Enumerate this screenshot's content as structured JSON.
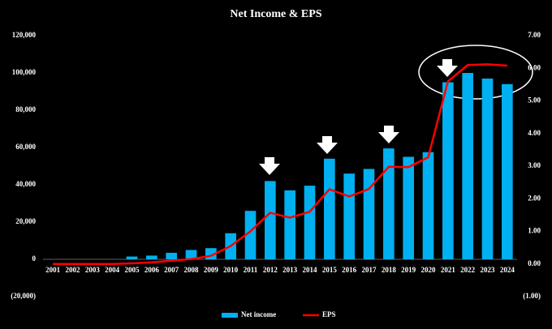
{
  "chart_data": {
    "type": "bar",
    "title": "Net Income & EPS",
    "categories": [
      "2001",
      "2002",
      "2003",
      "2004",
      "2005",
      "2006",
      "2007",
      "2008",
      "2009",
      "2010",
      "2011",
      "2012",
      "2013",
      "2014",
      "2015",
      "2016",
      "2017",
      "2018",
      "2019",
      "2020",
      "2021",
      "2022",
      "2023",
      "2024"
    ],
    "series": [
      {
        "name": "Net income",
        "type": "bar",
        "color": "#00b0f0",
        "values": [
          0,
          0,
          0,
          0,
          1500,
          2000,
          3500,
          5000,
          6000,
          14000,
          26000,
          42000,
          37000,
          39500,
          54000,
          46000,
          48500,
          59500,
          55000,
          57500,
          95000,
          100000,
          97000,
          94000
        ]
      },
      {
        "name": "EPS",
        "type": "line",
        "axis": "y2",
        "color": "#ff0000",
        "values": [
          0,
          0,
          0,
          0,
          0.02,
          0.05,
          0.1,
          0.15,
          0.25,
          0.55,
          1.0,
          1.57,
          1.42,
          1.6,
          2.29,
          2.07,
          2.3,
          2.98,
          2.97,
          3.27,
          5.6,
          6.1,
          6.12,
          6.08
        ]
      }
    ],
    "ylim": [
      -20000,
      120000
    ],
    "yticks": [
      {
        "value": -20000,
        "label": "(20,000)"
      },
      0,
      {
        "value": 20000,
        "label": "20,000"
      },
      {
        "value": 40000,
        "label": "40,000"
      },
      {
        "value": 60000,
        "label": "60,000"
      },
      {
        "value": 80000,
        "label": "80,000"
      },
      {
        "value": 100000,
        "label": "100,000"
      },
      {
        "value": 120000,
        "label": "120,000"
      }
    ],
    "y2lim": [
      -1,
      7
    ],
    "y2ticks": [
      {
        "value": -1,
        "label": "(1.00)"
      },
      {
        "value": 0,
        "label": "0.00"
      },
      {
        "value": 1,
        "label": "1.00"
      },
      {
        "value": 2,
        "label": "2.00"
      },
      {
        "value": 3,
        "label": "3.00"
      },
      {
        "value": 4,
        "label": "4.00"
      },
      {
        "value": 5,
        "label": "5.00"
      },
      {
        "value": 6,
        "label": "6.00"
      },
      {
        "value": 7,
        "label": "7.00"
      }
    ],
    "legend": "bottom",
    "grid": false
  }
}
